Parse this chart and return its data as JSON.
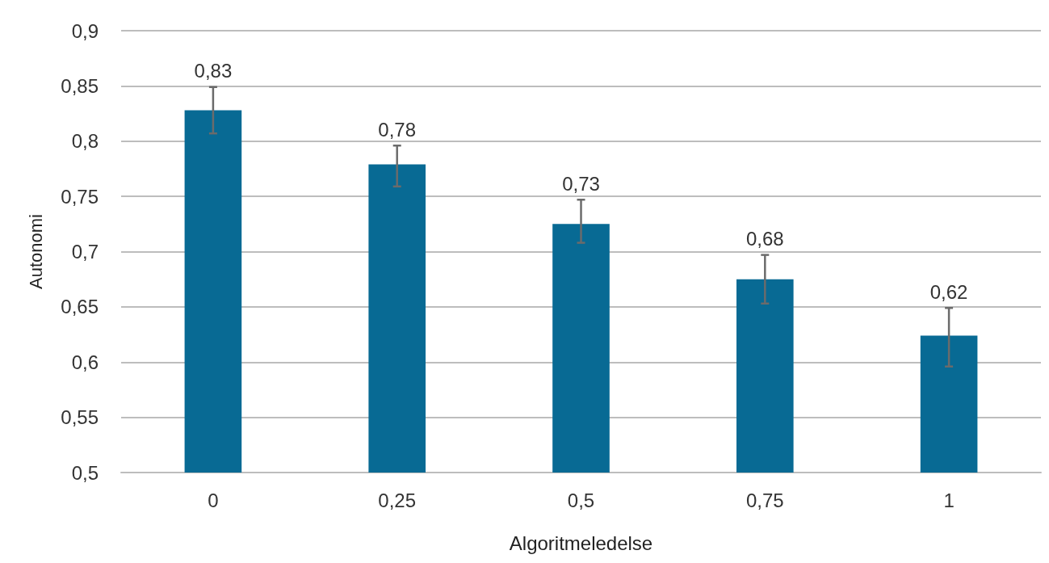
{
  "chart_data": {
    "type": "bar",
    "xlabel": "Algoritmeledelse",
    "ylabel": "Autonomi",
    "categories": [
      "0",
      "0,25",
      "0,5",
      "0,75",
      "1"
    ],
    "values": [
      0.828,
      0.779,
      0.725,
      0.675,
      0.624
    ],
    "value_labels": [
      "0,83",
      "0,78",
      "0,73",
      "0,68",
      "0,62"
    ],
    "errors": [
      [
        0.807,
        0.849
      ],
      [
        0.759,
        0.796
      ],
      [
        0.708,
        0.747
      ],
      [
        0.653,
        0.697
      ],
      [
        0.596,
        0.649
      ]
    ],
    "color": "#086a94",
    "ylim": [
      0.5,
      0.9
    ],
    "yticks": [
      {
        "value": 0.5,
        "label": "0,5"
      },
      {
        "value": 0.55,
        "label": "0,55"
      },
      {
        "value": 0.6,
        "label": "0,6"
      },
      {
        "value": 0.65,
        "label": "0,65"
      },
      {
        "value": 0.7,
        "label": "0,7"
      },
      {
        "value": 0.75,
        "label": "0,75"
      },
      {
        "value": 0.8,
        "label": "0,8"
      },
      {
        "value": 0.85,
        "label": "0,85"
      },
      {
        "value": 0.9,
        "label": "0,9"
      }
    ],
    "grid": "y"
  }
}
